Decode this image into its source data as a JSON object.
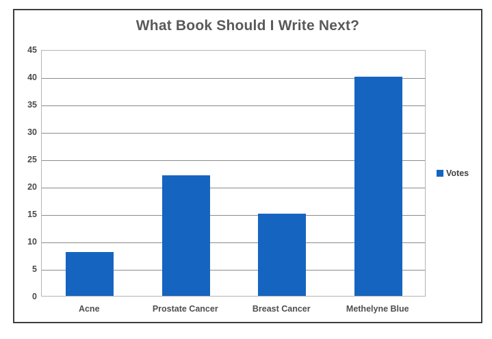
{
  "chart_data": {
    "type": "bar",
    "title": "What Book Should I Write Next?",
    "categories": [
      "Acne",
      "Prostate Cancer",
      "Breast Cancer",
      "Methelyne Blue"
    ],
    "values": [
      8,
      22,
      15,
      40
    ],
    "series": [
      {
        "name": "Votes",
        "values": [
          8,
          22,
          15,
          40
        ]
      }
    ],
    "legend_label": "Votes",
    "legend_position": "right",
    "xlabel": "",
    "ylabel": "",
    "ylim": [
      0,
      45
    ],
    "yticks": [
      0,
      5,
      10,
      15,
      20,
      25,
      30,
      35,
      40,
      45
    ],
    "grid": "horizontal"
  },
  "colors": {
    "bar": "#1565c0",
    "title_text": "#595959",
    "axis_text": "#4a4a4a",
    "gridline": "#8a8a8a",
    "plot_border": "#b3b3b3",
    "frame_border": "#3d3d3d"
  }
}
